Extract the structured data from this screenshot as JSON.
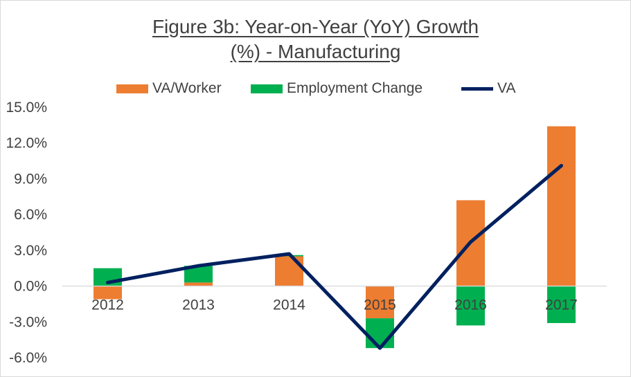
{
  "chart_data": {
    "type": "bar",
    "title_line1": "Figure 3b: Year-on-Year (YoY) Growth",
    "title_line2": "(%) - Manufacturing",
    "categories": [
      "2012",
      "2013",
      "2014",
      "2015",
      "2016",
      "2017"
    ],
    "series": [
      {
        "name": "VA/Worker",
        "kind": "stacked-bar",
        "color": "#ED7D31",
        "values": [
          -1.1,
          0.3,
          2.5,
          -2.7,
          7.2,
          13.4
        ]
      },
      {
        "name": "Employment Change",
        "kind": "stacked-bar",
        "color": "#00B050",
        "values": [
          1.5,
          1.4,
          0.1,
          -2.5,
          -3.3,
          -3.1
        ]
      },
      {
        "name": "VA",
        "kind": "line",
        "color": "#002060",
        "values": [
          0.3,
          1.7,
          2.7,
          -5.2,
          3.7,
          10.1
        ]
      }
    ],
    "yticks": [
      "15.0%",
      "12.0%",
      "9.0%",
      "6.0%",
      "3.0%",
      "0.0%",
      "-3.0%",
      "-6.0%"
    ],
    "ylim": [
      -6,
      15
    ],
    "legend_position": "top",
    "grid": false
  }
}
